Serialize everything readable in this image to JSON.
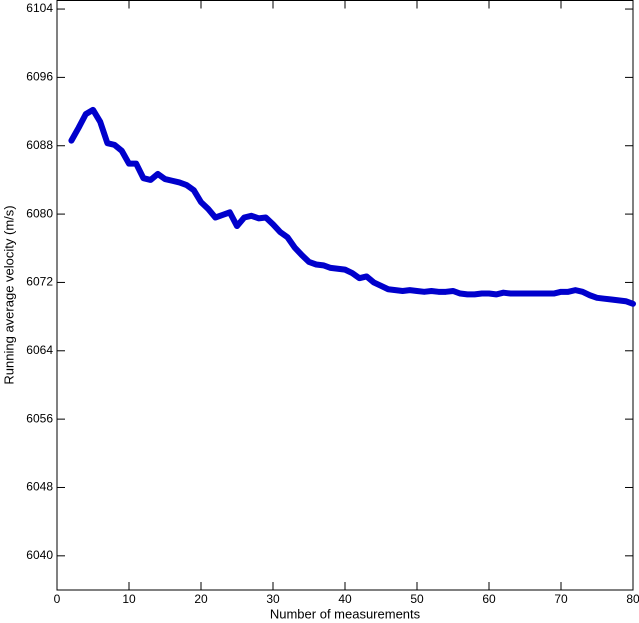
{
  "chart_data": {
    "type": "line",
    "x_label": "Number of measurements",
    "y_label": "Running average velocity (m/s)",
    "x": [
      2,
      3,
      4,
      5,
      6,
      7,
      8,
      9,
      10,
      11,
      12,
      13,
      14,
      15,
      16,
      17,
      18,
      19,
      20,
      21,
      22,
      23,
      24,
      25,
      26,
      27,
      28,
      29,
      30,
      31,
      32,
      33,
      34,
      35,
      36,
      37,
      38,
      39,
      40,
      41,
      42,
      43,
      44,
      45,
      46,
      47,
      48,
      49,
      50,
      51,
      52,
      53,
      54,
      55,
      56,
      57,
      58,
      59,
      60,
      61,
      62,
      63,
      64,
      65,
      66,
      67,
      68,
      69,
      70,
      71,
      72,
      73,
      74,
      75,
      76,
      77,
      78,
      79,
      80
    ],
    "series": [
      {
        "color": "#0000cc",
        "values": [
          6088.6,
          6090.1,
          6091.7,
          6092.2,
          6090.8,
          6088.3,
          6088.1,
          6087.4,
          6085.9,
          6085.9,
          6084.2,
          6084.0,
          6084.7,
          6084.1,
          6083.9,
          6083.7,
          6083.4,
          6082.8,
          6081.4,
          6080.6,
          6079.6,
          6079.9,
          6080.2,
          6078.6,
          6079.6,
          6079.8,
          6079.5,
          6079.6,
          6078.8,
          6077.9,
          6077.3,
          6076.1,
          6075.2,
          6074.4,
          6074.1,
          6074.0,
          6073.7,
          6073.6,
          6073.5,
          6073.1,
          6072.5,
          6072.7,
          6072.0,
          6071.6,
          6071.2,
          6071.1,
          6071.0,
          6071.1,
          6071.0,
          6070.9,
          6071.0,
          6070.9,
          6070.9,
          6071.0,
          6070.7,
          6070.6,
          6070.6,
          6070.7,
          6070.7,
          6070.6,
          6070.8,
          6070.7,
          6070.7,
          6070.7,
          6070.7,
          6070.7,
          6070.7,
          6070.7,
          6070.9,
          6070.9,
          6071.1,
          6070.9,
          6070.5,
          6070.2,
          6070.1,
          6070.0,
          6069.9,
          6069.8,
          6069.5
        ]
      }
    ],
    "xlim": [
      0,
      80
    ],
    "xticks": [
      0,
      10,
      20,
      30,
      40,
      50,
      60,
      70,
      80
    ],
    "ylim": [
      6036,
      6105
    ],
    "yticks": [
      6040,
      6048,
      6056,
      6064,
      6072,
      6080,
      6088,
      6096,
      6104
    ]
  }
}
